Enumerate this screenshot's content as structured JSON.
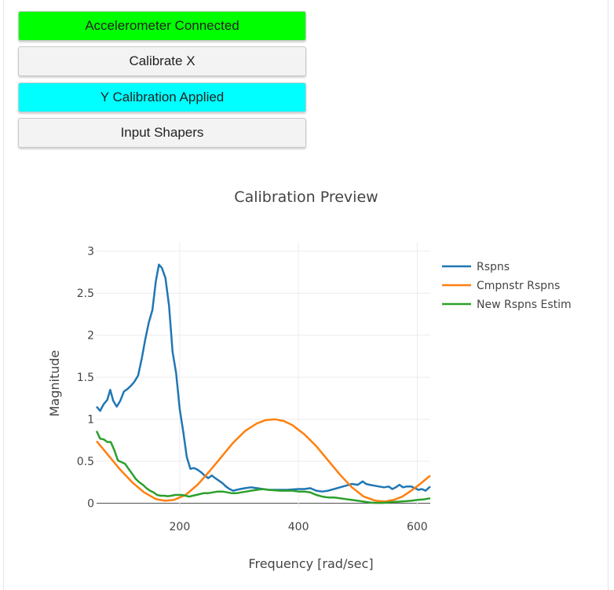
{
  "buttons": {
    "accelerometer": {
      "label": "Accelerometer Connected",
      "color": "#00ff00"
    },
    "calibrate_x": {
      "label": "Calibrate X",
      "color": "#f3f3f3"
    },
    "y_calibration": {
      "label": "Y Calibration Applied",
      "color": "#00ffff"
    },
    "input_shapers": {
      "label": "Input Shapers",
      "color": "#f3f3f3"
    }
  },
  "chart_data": {
    "type": "line",
    "title": "Calibration Preview",
    "xlabel": "Frequency [rad/sec]",
    "ylabel": "Magnitude",
    "xlim": [
      60,
      622
    ],
    "ylim": [
      -0.05,
      3.1
    ],
    "xticks": [
      200,
      400,
      600
    ],
    "yticks": [
      0,
      0.5,
      1,
      1.5,
      2,
      2.5,
      3
    ],
    "ytick_labels": [
      "0",
      "0.5",
      "1",
      "1.5",
      "2",
      "2.5",
      "3"
    ],
    "grid": true,
    "legend": "top-right",
    "series": [
      {
        "name": "Rspns",
        "color": "#1f77b4",
        "points": [
          [
            60,
            1.15
          ],
          [
            66,
            1.1
          ],
          [
            72,
            1.18
          ],
          [
            78,
            1.23
          ],
          [
            83,
            1.35
          ],
          [
            88,
            1.22
          ],
          [
            94,
            1.15
          ],
          [
            100,
            1.22
          ],
          [
            106,
            1.33
          ],
          [
            112,
            1.36
          ],
          [
            118,
            1.4
          ],
          [
            124,
            1.45
          ],
          [
            130,
            1.52
          ],
          [
            136,
            1.72
          ],
          [
            142,
            1.95
          ],
          [
            148,
            2.15
          ],
          [
            154,
            2.3
          ],
          [
            160,
            2.65
          ],
          [
            165,
            2.84
          ],
          [
            170,
            2.8
          ],
          [
            176,
            2.68
          ],
          [
            182,
            2.35
          ],
          [
            188,
            1.8
          ],
          [
            194,
            1.55
          ],
          [
            200,
            1.12
          ],
          [
            206,
            0.85
          ],
          [
            212,
            0.55
          ],
          [
            218,
            0.41
          ],
          [
            224,
            0.42
          ],
          [
            230,
            0.4
          ],
          [
            236,
            0.37
          ],
          [
            242,
            0.33
          ],
          [
            248,
            0.3
          ],
          [
            254,
            0.33
          ],
          [
            260,
            0.3
          ],
          [
            266,
            0.27
          ],
          [
            272,
            0.24
          ],
          [
            278,
            0.2
          ],
          [
            284,
            0.17
          ],
          [
            290,
            0.15
          ],
          [
            296,
            0.16
          ],
          [
            302,
            0.17
          ],
          [
            310,
            0.18
          ],
          [
            320,
            0.19
          ],
          [
            330,
            0.18
          ],
          [
            340,
            0.17
          ],
          [
            350,
            0.16
          ],
          [
            360,
            0.16
          ],
          [
            370,
            0.16
          ],
          [
            380,
            0.16
          ],
          [
            390,
            0.165
          ],
          [
            400,
            0.17
          ],
          [
            410,
            0.17
          ],
          [
            420,
            0.18
          ],
          [
            430,
            0.15
          ],
          [
            440,
            0.14
          ],
          [
            450,
            0.15
          ],
          [
            460,
            0.17
          ],
          [
            470,
            0.19
          ],
          [
            480,
            0.21
          ],
          [
            490,
            0.23
          ],
          [
            500,
            0.22
          ],
          [
            508,
            0.26
          ],
          [
            514,
            0.23
          ],
          [
            520,
            0.22
          ],
          [
            528,
            0.21
          ],
          [
            536,
            0.2
          ],
          [
            544,
            0.19
          ],
          [
            552,
            0.2
          ],
          [
            558,
            0.17
          ],
          [
            564,
            0.19
          ],
          [
            570,
            0.22
          ],
          [
            576,
            0.19
          ],
          [
            582,
            0.2
          ],
          [
            590,
            0.2
          ],
          [
            596,
            0.18
          ],
          [
            602,
            0.16
          ],
          [
            608,
            0.17
          ],
          [
            614,
            0.15
          ],
          [
            622,
            0.2
          ]
        ]
      },
      {
        "name": "Cmpnstr Rspns",
        "color": "#ff7f0e",
        "points": [
          [
            60,
            0.74
          ],
          [
            80,
            0.57
          ],
          [
            100,
            0.4
          ],
          [
            120,
            0.25
          ],
          [
            140,
            0.13
          ],
          [
            160,
            0.05
          ],
          [
            175,
            0.03
          ],
          [
            190,
            0.04
          ],
          [
            210,
            0.1
          ],
          [
            230,
            0.22
          ],
          [
            250,
            0.38
          ],
          [
            270,
            0.55
          ],
          [
            290,
            0.72
          ],
          [
            310,
            0.86
          ],
          [
            330,
            0.95
          ],
          [
            345,
            0.99
          ],
          [
            360,
            1.0
          ],
          [
            375,
            0.98
          ],
          [
            390,
            0.93
          ],
          [
            410,
            0.82
          ],
          [
            430,
            0.68
          ],
          [
            450,
            0.51
          ],
          [
            470,
            0.34
          ],
          [
            490,
            0.19
          ],
          [
            510,
            0.08
          ],
          [
            530,
            0.03
          ],
          [
            545,
            0.02
          ],
          [
            560,
            0.04
          ],
          [
            575,
            0.08
          ],
          [
            590,
            0.15
          ],
          [
            605,
            0.23
          ],
          [
            622,
            0.33
          ]
        ]
      },
      {
        "name": "New Rspns Estim",
        "color": "#2ca02c",
        "points": [
          [
            60,
            0.86
          ],
          [
            66,
            0.77
          ],
          [
            72,
            0.76
          ],
          [
            78,
            0.73
          ],
          [
            84,
            0.73
          ],
          [
            90,
            0.63
          ],
          [
            96,
            0.51
          ],
          [
            102,
            0.49
          ],
          [
            108,
            0.47
          ],
          [
            114,
            0.41
          ],
          [
            120,
            0.35
          ],
          [
            126,
            0.29
          ],
          [
            132,
            0.25
          ],
          [
            138,
            0.22
          ],
          [
            144,
            0.18
          ],
          [
            150,
            0.15
          ],
          [
            156,
            0.13
          ],
          [
            162,
            0.1
          ],
          [
            168,
            0.09
          ],
          [
            174,
            0.09
          ],
          [
            180,
            0.085
          ],
          [
            186,
            0.09
          ],
          [
            192,
            0.1
          ],
          [
            198,
            0.1
          ],
          [
            204,
            0.1
          ],
          [
            210,
            0.09
          ],
          [
            216,
            0.08
          ],
          [
            222,
            0.09
          ],
          [
            228,
            0.1
          ],
          [
            234,
            0.11
          ],
          [
            240,
            0.12
          ],
          [
            248,
            0.12
          ],
          [
            256,
            0.13
          ],
          [
            264,
            0.14
          ],
          [
            272,
            0.14
          ],
          [
            280,
            0.13
          ],
          [
            288,
            0.12
          ],
          [
            296,
            0.12
          ],
          [
            304,
            0.13
          ],
          [
            312,
            0.14
          ],
          [
            320,
            0.15
          ],
          [
            330,
            0.16
          ],
          [
            340,
            0.17
          ],
          [
            350,
            0.16
          ],
          [
            360,
            0.155
          ],
          [
            370,
            0.15
          ],
          [
            380,
            0.15
          ],
          [
            390,
            0.15
          ],
          [
            400,
            0.14
          ],
          [
            410,
            0.14
          ],
          [
            420,
            0.13
          ],
          [
            430,
            0.1
          ],
          [
            440,
            0.08
          ],
          [
            450,
            0.07
          ],
          [
            460,
            0.07
          ],
          [
            470,
            0.06
          ],
          [
            480,
            0.05
          ],
          [
            490,
            0.04
          ],
          [
            500,
            0.03
          ],
          [
            510,
            0.02
          ],
          [
            520,
            0.01
          ],
          [
            530,
            0.005
          ],
          [
            540,
            0.005
          ],
          [
            550,
            0.01
          ],
          [
            560,
            0.015
          ],
          [
            570,
            0.02
          ],
          [
            580,
            0.025
          ],
          [
            590,
            0.03
          ],
          [
            600,
            0.04
          ],
          [
            610,
            0.045
          ],
          [
            622,
            0.06
          ]
        ]
      }
    ]
  }
}
